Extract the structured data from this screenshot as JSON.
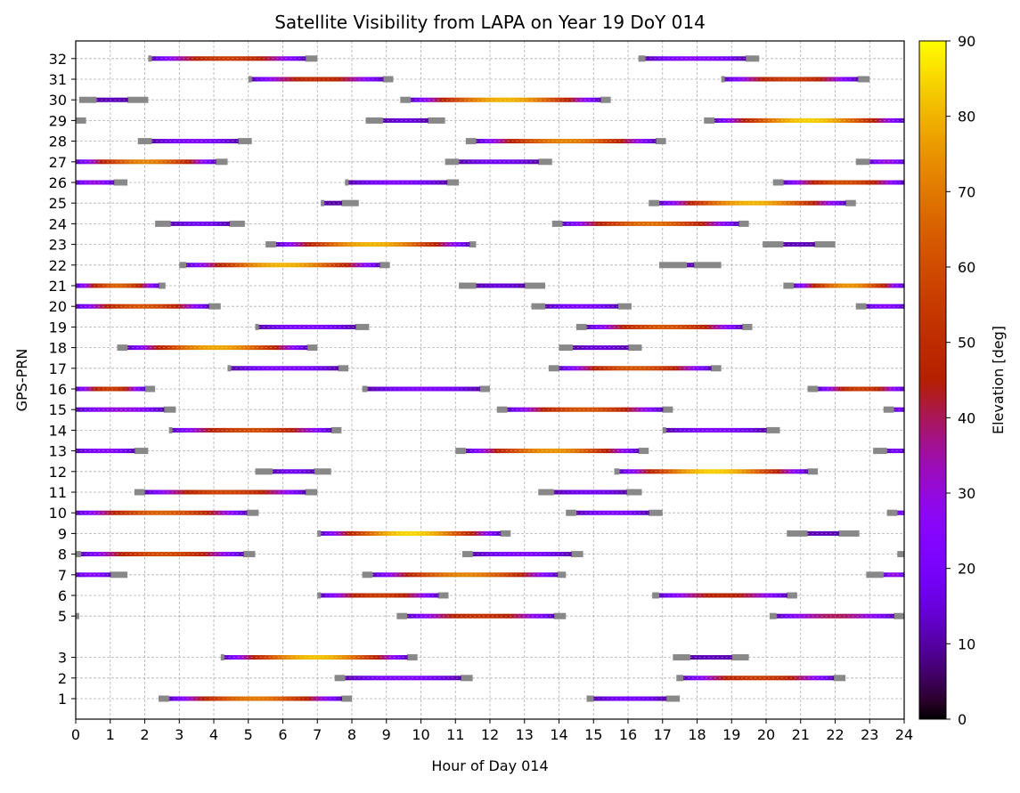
{
  "chart_data": {
    "type": "timeline",
    "title": "Satellite Visibility from LAPA on Year 19 DoY 014",
    "xlabel": "Hour of Day 014",
    "ylabel": "GPS-PRN",
    "xlim": [
      0,
      24
    ],
    "x_ticks": [
      "0",
      "1",
      "2",
      "3",
      "4",
      "5",
      "6",
      "7",
      "8",
      "9",
      "10",
      "11",
      "12",
      "13",
      "14",
      "15",
      "16",
      "17",
      "18",
      "19",
      "20",
      "21",
      "22",
      "23",
      "24"
    ],
    "y_ticks": [
      "1",
      "2",
      "3",
      "5",
      "6",
      "7",
      "8",
      "9",
      "10",
      "11",
      "12",
      "13",
      "14",
      "15",
      "16",
      "17",
      "18",
      "19",
      "20",
      "21",
      "22",
      "23",
      "24",
      "25",
      "26",
      "27",
      "28",
      "29",
      "30",
      "31",
      "32"
    ],
    "grid": true,
    "colorbar": {
      "label": "Elevation [deg]",
      "range": [
        0,
        90
      ],
      "ticks": [
        "0",
        "10",
        "20",
        "30",
        "40",
        "50",
        "60",
        "70",
        "80",
        "90"
      ],
      "colormap": "gnuplot"
    },
    "below_mask_color": "#888888",
    "series": [
      {
        "prn": "1",
        "passes": [
          {
            "start": 2.4,
            "end": 8.0,
            "peak": 70,
            "gray_start": 0.3,
            "gray_end": 0.3
          },
          {
            "start": 14.8,
            "end": 17.5,
            "peak": 20,
            "gray_start": 0.2,
            "gray_end": 0.4
          }
        ]
      },
      {
        "prn": "2",
        "passes": [
          {
            "start": 7.5,
            "end": 11.5,
            "peak": 22,
            "gray_start": 0.3,
            "gray_end": 0.35
          },
          {
            "start": 17.4,
            "end": 22.3,
            "peak": 55,
            "gray_start": 0.2,
            "gray_end": 0.35
          }
        ]
      },
      {
        "prn": "3",
        "passes": [
          {
            "start": 4.2,
            "end": 9.9,
            "peak": 82,
            "gray_start": 0.1,
            "gray_end": 0.3
          },
          {
            "start": 17.3,
            "end": 19.5,
            "peak": 12,
            "gray_start": 0.5,
            "gray_end": 0.5
          }
        ]
      },
      {
        "prn": "5",
        "passes": [
          {
            "start": 0.0,
            "end": 0.1,
            "peak": 5,
            "gray_start": 0.1,
            "gray_end": 0.0
          },
          {
            "start": 9.3,
            "end": 14.2,
            "peak": 52,
            "gray_start": 0.3,
            "gray_end": 0.35
          },
          {
            "start": 20.1,
            "end": 24.0,
            "peak": 40,
            "gray_start": 0.2,
            "gray_end": 0.3
          }
        ]
      },
      {
        "prn": "6",
        "passes": [
          {
            "start": 7.0,
            "end": 10.8,
            "peak": 55,
            "gray_start": 0.1,
            "gray_end": 0.3
          },
          {
            "start": 16.7,
            "end": 20.9,
            "peak": 47,
            "gray_start": 0.2,
            "gray_end": 0.3
          }
        ]
      },
      {
        "prn": "7",
        "passes": [
          {
            "start": 0.0,
            "end": 1.5,
            "peak": 25,
            "gray_start": 0.0,
            "gray_end": 0.5
          },
          {
            "start": 8.3,
            "end": 14.2,
            "peak": 72,
            "gray_start": 0.3,
            "gray_end": 0.25
          },
          {
            "start": 22.9,
            "end": 24.0,
            "peak": 30,
            "gray_start": 0.5,
            "gray_end": 0.0
          }
        ]
      },
      {
        "prn": "8",
        "passes": [
          {
            "start": 0.0,
            "end": 5.2,
            "peak": 60,
            "gray_start": 0.15,
            "gray_end": 0.35
          },
          {
            "start": 11.2,
            "end": 14.7,
            "peak": 22,
            "gray_start": 0.3,
            "gray_end": 0.35
          },
          {
            "start": 23.8,
            "end": 24.0,
            "peak": 5,
            "gray_start": 0.2,
            "gray_end": 0.0
          }
        ]
      },
      {
        "prn": "9",
        "passes": [
          {
            "start": 7.0,
            "end": 12.6,
            "peak": 85,
            "gray_start": 0.1,
            "gray_end": 0.3
          },
          {
            "start": 20.6,
            "end": 22.7,
            "peak": 12,
            "gray_start": 0.6,
            "gray_end": 0.6
          }
        ]
      },
      {
        "prn": "10",
        "passes": [
          {
            "start": 0.0,
            "end": 5.3,
            "peak": 65,
            "gray_start": 0.0,
            "gray_end": 0.35
          },
          {
            "start": 14.2,
            "end": 17.0,
            "peak": 22,
            "gray_start": 0.3,
            "gray_end": 0.4
          },
          {
            "start": 23.5,
            "end": 24.0,
            "peak": 20,
            "gray_start": 0.3,
            "gray_end": 0.0
          }
        ]
      },
      {
        "prn": "11",
        "passes": [
          {
            "start": 1.7,
            "end": 7.0,
            "peak": 58,
            "gray_start": 0.3,
            "gray_end": 0.35
          },
          {
            "start": 13.4,
            "end": 16.4,
            "peak": 18,
            "gray_start": 0.45,
            "gray_end": 0.45
          }
        ]
      },
      {
        "prn": "12",
        "passes": [
          {
            "start": 5.2,
            "end": 7.4,
            "peak": 18,
            "gray_start": 0.5,
            "gray_end": 0.5
          },
          {
            "start": 15.6,
            "end": 21.5,
            "peak": 84,
            "gray_start": 0.15,
            "gray_end": 0.3
          }
        ]
      },
      {
        "prn": "13",
        "passes": [
          {
            "start": 0.0,
            "end": 2.1,
            "peak": 25,
            "gray_start": 0.0,
            "gray_end": 0.4
          },
          {
            "start": 11.0,
            "end": 16.6,
            "peak": 75,
            "gray_start": 0.3,
            "gray_end": 0.3
          },
          {
            "start": 23.1,
            "end": 24.0,
            "peak": 20,
            "gray_start": 0.4,
            "gray_end": 0.0
          }
        ]
      },
      {
        "prn": "14",
        "passes": [
          {
            "start": 2.7,
            "end": 7.7,
            "peak": 60,
            "gray_start": 0.1,
            "gray_end": 0.3
          },
          {
            "start": 17.0,
            "end": 20.4,
            "peak": 22,
            "gray_start": 0.1,
            "gray_end": 0.4
          }
        ]
      },
      {
        "prn": "15",
        "passes": [
          {
            "start": 0.0,
            "end": 2.9,
            "peak": 30,
            "gray_start": 0.0,
            "gray_end": 0.35
          },
          {
            "start": 12.2,
            "end": 17.3,
            "peak": 62,
            "gray_start": 0.3,
            "gray_end": 0.3
          },
          {
            "start": 23.4,
            "end": 24.0,
            "peak": 20,
            "gray_start": 0.3,
            "gray_end": 0.0
          }
        ]
      },
      {
        "prn": "16",
        "passes": [
          {
            "start": 0.0,
            "end": 2.3,
            "peak": 55,
            "gray_start": 0.0,
            "gray_end": 0.3
          },
          {
            "start": 8.3,
            "end": 12.0,
            "peak": 22,
            "gray_start": 0.15,
            "gray_end": 0.3
          },
          {
            "start": 21.2,
            "end": 24.0,
            "peak": 55,
            "gray_start": 0.3,
            "gray_end": 0.0
          }
        ]
      },
      {
        "prn": "17",
        "passes": [
          {
            "start": 4.4,
            "end": 7.9,
            "peak": 22,
            "gray_start": 0.1,
            "gray_end": 0.3
          },
          {
            "start": 13.7,
            "end": 18.7,
            "peak": 62,
            "gray_start": 0.3,
            "gray_end": 0.3
          }
        ]
      },
      {
        "prn": "18",
        "passes": [
          {
            "start": 1.2,
            "end": 7.0,
            "peak": 78,
            "gray_start": 0.3,
            "gray_end": 0.3
          },
          {
            "start": 14.0,
            "end": 16.4,
            "peak": 15,
            "gray_start": 0.4,
            "gray_end": 0.4
          }
        ]
      },
      {
        "prn": "19",
        "passes": [
          {
            "start": 5.2,
            "end": 8.5,
            "peak": 22,
            "gray_start": 0.1,
            "gray_end": 0.4
          },
          {
            "start": 14.5,
            "end": 19.6,
            "peak": 62,
            "gray_start": 0.3,
            "gray_end": 0.3
          }
        ]
      },
      {
        "prn": "20",
        "passes": [
          {
            "start": 0.0,
            "end": 4.2,
            "peak": 62,
            "gray_start": 0.0,
            "gray_end": 0.35
          },
          {
            "start": 13.2,
            "end": 16.1,
            "peak": 22,
            "gray_start": 0.4,
            "gray_end": 0.4
          },
          {
            "start": 22.6,
            "end": 24.0,
            "peak": 25,
            "gray_start": 0.3,
            "gray_end": 0.0
          }
        ]
      },
      {
        "prn": "21",
        "passes": [
          {
            "start": 0.0,
            "end": 2.6,
            "peak": 65,
            "gray_start": 0.0,
            "gray_end": 0.2
          },
          {
            "start": 11.1,
            "end": 13.6,
            "peak": 15,
            "gray_start": 0.5,
            "gray_end": 0.6
          },
          {
            "start": 20.5,
            "end": 24.0,
            "peak": 75,
            "gray_start": 0.3,
            "gray_end": 0.0
          }
        ]
      },
      {
        "prn": "22",
        "passes": [
          {
            "start": 3.0,
            "end": 9.1,
            "peak": 80,
            "gray_start": 0.2,
            "gray_end": 0.3
          },
          {
            "start": 16.9,
            "end": 18.7,
            "peak": 12,
            "gray_start": 0.8,
            "gray_end": 0.8
          }
        ]
      },
      {
        "prn": "23",
        "passes": [
          {
            "start": 5.5,
            "end": 11.6,
            "peak": 80,
            "gray_start": 0.3,
            "gray_end": 0.2
          },
          {
            "start": 19.9,
            "end": 22.0,
            "peak": 12,
            "gray_start": 0.6,
            "gray_end": 0.6
          }
        ]
      },
      {
        "prn": "24",
        "passes": [
          {
            "start": 2.3,
            "end": 4.9,
            "peak": 18,
            "gray_start": 0.45,
            "gray_end": 0.45
          },
          {
            "start": 13.8,
            "end": 19.5,
            "peak": 68,
            "gray_start": 0.3,
            "gray_end": 0.3
          }
        ]
      },
      {
        "prn": "25",
        "passes": [
          {
            "start": 7.1,
            "end": 8.2,
            "peak": 10,
            "gray_start": 0.1,
            "gray_end": 0.5
          },
          {
            "start": 16.6,
            "end": 22.6,
            "peak": 80,
            "gray_start": 0.3,
            "gray_end": 0.3
          }
        ]
      },
      {
        "prn": "26",
        "passes": [
          {
            "start": 0.0,
            "end": 1.5,
            "peak": 30,
            "gray_start": 0.0,
            "gray_end": 0.4
          },
          {
            "start": 7.8,
            "end": 11.1,
            "peak": 22,
            "gray_start": 0.1,
            "gray_end": 0.35
          },
          {
            "start": 20.2,
            "end": 24.0,
            "peak": 60,
            "gray_start": 0.3,
            "gray_end": 0.0
          }
        ]
      },
      {
        "prn": "27",
        "passes": [
          {
            "start": 0.0,
            "end": 4.4,
            "peak": 72,
            "gray_start": 0.0,
            "gray_end": 0.35
          },
          {
            "start": 10.7,
            "end": 13.8,
            "peak": 18,
            "gray_start": 0.4,
            "gray_end": 0.4
          },
          {
            "start": 22.6,
            "end": 24.0,
            "peak": 30,
            "gray_start": 0.4,
            "gray_end": 0.0
          }
        ]
      },
      {
        "prn": "28",
        "passes": [
          {
            "start": 1.8,
            "end": 5.1,
            "peak": 22,
            "gray_start": 0.4,
            "gray_end": 0.4
          },
          {
            "start": 11.3,
            "end": 17.1,
            "peak": 72,
            "gray_start": 0.3,
            "gray_end": 0.3
          }
        ]
      },
      {
        "prn": "29",
        "passes": [
          {
            "start": 0.0,
            "end": 0.3,
            "peak": 5,
            "gray_start": 0.0,
            "gray_end": 0.3
          },
          {
            "start": 8.4,
            "end": 10.7,
            "peak": 15,
            "gray_start": 0.5,
            "gray_end": 0.5
          },
          {
            "start": 18.2,
            "end": 24.0,
            "peak": 84,
            "gray_start": 0.3,
            "gray_end": 0.0
          }
        ]
      },
      {
        "prn": "30",
        "passes": [
          {
            "start": 0.1,
            "end": 2.1,
            "peak": 12,
            "gray_start": 0.5,
            "gray_end": 0.6
          },
          {
            "start": 9.4,
            "end": 15.5,
            "peak": 80,
            "gray_start": 0.3,
            "gray_end": 0.3
          }
        ]
      },
      {
        "prn": "31",
        "passes": [
          {
            "start": 5.0,
            "end": 9.2,
            "peak": 50,
            "gray_start": 0.1,
            "gray_end": 0.3
          },
          {
            "start": 18.7,
            "end": 23.0,
            "peak": 55,
            "gray_start": 0.1,
            "gray_end": 0.35
          }
        ]
      },
      {
        "prn": "32",
        "passes": [
          {
            "start": 2.1,
            "end": 7.0,
            "peak": 55,
            "gray_start": 0.1,
            "gray_end": 0.35
          },
          {
            "start": 16.3,
            "end": 19.8,
            "peak": 25,
            "gray_start": 0.2,
            "gray_end": 0.4
          }
        ]
      }
    ]
  }
}
